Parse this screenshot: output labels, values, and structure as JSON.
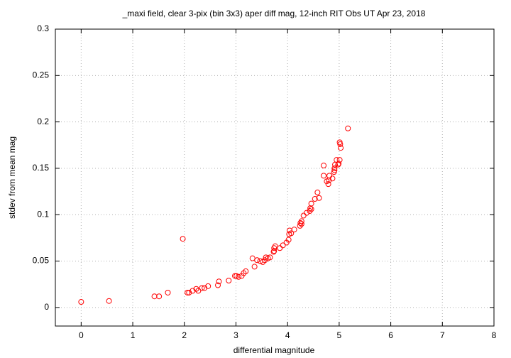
{
  "chart_data": {
    "type": "scatter",
    "title": "_maxi field, clear 3-pix (bin 3x3) aper diff mag,  12-inch RIT Obs UT Apr 23, 2018",
    "xlabel": "differential magnitude",
    "ylabel": "stdev from mean mag",
    "x": [
      0,
      0.54,
      1.42,
      1.51,
      1.68,
      1.97,
      2.06,
      2.09,
      2.16,
      2.23,
      2.27,
      2.34,
      2.39,
      2.46,
      2.65,
      2.67,
      2.86,
      2.98,
      3.01,
      3.05,
      3.11,
      3.15,
      3.19,
      3.32,
      3.36,
      3.41,
      3.47,
      3.52,
      3.56,
      3.58,
      3.62,
      3.66,
      3.73,
      3.74,
      3.74,
      3.76,
      3.85,
      3.91,
      3.98,
      4.02,
      4.03,
      4.04,
      4.07,
      4.13,
      4.24,
      4.25,
      4.27,
      4.27,
      4.31,
      4.37,
      4.43,
      4.44,
      4.46,
      4.46,
      4.53,
      4.58,
      4.61,
      4.7,
      4.7,
      4.76,
      4.79,
      4.8,
      4.81,
      4.87,
      4.9,
      4.91,
      4.91,
      4.92,
      4.95,
      4.98,
      4.99,
      5.01,
      5.03,
      5.01,
      5.02,
      5.17
    ],
    "values": [
      0.006,
      0.007,
      0.012,
      0.012,
      0.016,
      0.074,
      0.016,
      0.016,
      0.018,
      0.02,
      0.018,
      0.021,
      0.021,
      0.023,
      0.024,
      0.028,
      0.029,
      0.034,
      0.034,
      0.033,
      0.034,
      0.037,
      0.039,
      0.053,
      0.044,
      0.051,
      0.05,
      0.049,
      0.051,
      0.054,
      0.053,
      0.054,
      0.06,
      0.064,
      0.061,
      0.066,
      0.064,
      0.067,
      0.07,
      0.073,
      0.079,
      0.083,
      0.08,
      0.084,
      0.088,
      0.091,
      0.093,
      0.09,
      0.099,
      0.102,
      0.104,
      0.107,
      0.112,
      0.106,
      0.117,
      0.124,
      0.118,
      0.153,
      0.142,
      0.136,
      0.133,
      0.137,
      0.142,
      0.139,
      0.146,
      0.15,
      0.148,
      0.154,
      0.159,
      0.154,
      0.155,
      0.159,
      0.172,
      0.178,
      0.176,
      0.193
    ],
    "color": "#ff0000",
    "xlim": [
      -0.5,
      8
    ],
    "xticks": [
      0,
      1,
      2,
      3,
      4,
      5,
      6,
      7,
      8
    ],
    "ylim": [
      -0.02,
      0.3
    ],
    "yticks": [
      0,
      0.05,
      0.1,
      0.15,
      0.2,
      0.25,
      0.3
    ],
    "grid": true
  }
}
